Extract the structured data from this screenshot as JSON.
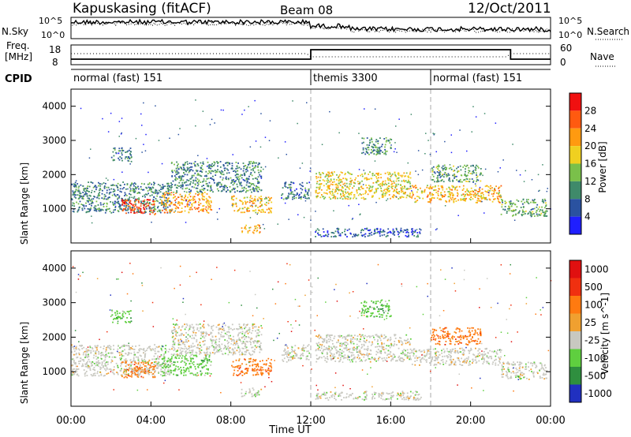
{
  "header": {
    "title": "Kapuskasing (fitACF)",
    "beam": "Beam 08",
    "date": "12/Oct/2011"
  },
  "noise_panel": {
    "left_label": "N.Sky",
    "right_label": "N.Search",
    "left_ticks": [
      "10^5",
      "10^0"
    ],
    "right_ticks": [
      "10^5",
      "10^0"
    ]
  },
  "freq_panel": {
    "left_label_line1": "Freq.",
    "left_label_line2": "[MHz]",
    "left_ticks": [
      "18",
      "8"
    ],
    "right_label": "Nave",
    "right_ticks": [
      "60",
      "0"
    ]
  },
  "cpid_panel": {
    "label": "CPID",
    "segments": [
      {
        "label": "normal (fast) 151",
        "start_hour": 0,
        "end_hour": 12
      },
      {
        "label": "themis 3300",
        "start_hour": 12,
        "end_hour": 18
      },
      {
        "label": "normal (fast) 151",
        "start_hour": 18,
        "end_hour": 24
      }
    ]
  },
  "x_axis": {
    "ticks": [
      "00:00",
      "04:00",
      "08:00",
      "12:00",
      "16:00",
      "20:00",
      "00:00"
    ],
    "label": "Time UT"
  },
  "power_panel": {
    "ylabel": "Slant Range [km]",
    "yticks": [
      "1000",
      "2000",
      "3000",
      "4000"
    ],
    "colorbar_label": "Power [dB]",
    "colorbar_ticks": [
      "4",
      "8",
      "12",
      "16",
      "20",
      "24",
      "28"
    ],
    "colors": [
      "#1f1fff",
      "#2a52a0",
      "#3f8a6a",
      "#7ac04a",
      "#f0d020",
      "#ff9a10",
      "#ff5a10",
      "#f01010"
    ]
  },
  "velocity_panel": {
    "ylabel": "Slant Range [km]",
    "yticks": [
      "1000",
      "2000",
      "3000",
      "4000"
    ],
    "colorbar_label": "Velocity [m s^-1]",
    "colorbar_ticks": [
      "1000",
      "500",
      "100",
      "25",
      "-25",
      "-100",
      "-500",
      "-1000"
    ],
    "colors": [
      "#2030c0",
      "#2f8f3f",
      "#5fcf3f",
      "#c8c8c0",
      "#f0a030",
      "#ff7a10",
      "#f03010",
      "#e01010"
    ]
  },
  "chart_data": {
    "type": "heatmap",
    "x_range_hours": [
      0,
      24
    ],
    "y_range_km": [
      0,
      4500
    ],
    "panels": [
      "Power [dB]",
      "Velocity [m s^-1]"
    ],
    "scatter_regions": [
      {
        "t0": 0.0,
        "t1": 5.0,
        "r0": 900,
        "r1": 1800,
        "power": 9,
        "vel": 25
      },
      {
        "t0": 2.0,
        "t1": 3.0,
        "r0": 2400,
        "r1": 2800,
        "power": 8,
        "vel": 100
      },
      {
        "t0": 2.5,
        "t1": 4.2,
        "r0": 850,
        "r1": 1300,
        "power": 26,
        "vel": -100
      },
      {
        "t0": 4.5,
        "t1": 7.0,
        "r0": 900,
        "r1": 1500,
        "power": 22,
        "vel": 100
      },
      {
        "t0": 5.0,
        "t1": 9.5,
        "r0": 1500,
        "r1": 2400,
        "power": 10,
        "vel": 25
      },
      {
        "t0": 8.0,
        "t1": 10.0,
        "r0": 900,
        "r1": 1400,
        "power": 20,
        "vel": -100
      },
      {
        "t0": 8.5,
        "t1": 9.5,
        "r0": 300,
        "r1": 550,
        "power": 20,
        "vel": 25
      },
      {
        "t0": 10.5,
        "t1": 11.9,
        "r0": 1300,
        "r1": 1800,
        "power": 8,
        "vel": 25
      },
      {
        "t0": 12.2,
        "t1": 17.0,
        "r0": 1300,
        "r1": 2100,
        "power": 18,
        "vel": 25
      },
      {
        "t0": 14.5,
        "t1": 16.0,
        "r0": 2600,
        "r1": 3100,
        "power": 10,
        "vel": 100
      },
      {
        "t0": 17.0,
        "t1": 21.5,
        "r0": 1200,
        "r1": 1700,
        "power": 20,
        "vel": 25
      },
      {
        "t0": 18.0,
        "t1": 20.5,
        "r0": 1800,
        "r1": 2300,
        "power": 12,
        "vel": -100
      },
      {
        "t0": 21.5,
        "t1": 23.8,
        "r0": 800,
        "r1": 1300,
        "power": 12,
        "vel": 25
      },
      {
        "t0": 12.2,
        "t1": 17.5,
        "r0": 200,
        "r1": 450,
        "power": 6,
        "vel": 25
      }
    ]
  }
}
